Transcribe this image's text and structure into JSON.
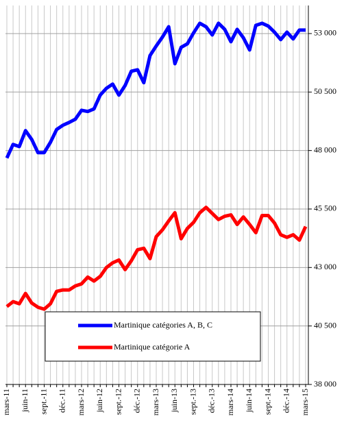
{
  "chart_data": {
    "type": "line",
    "categories": [
      "mars-11",
      null,
      null,
      "juin-11",
      null,
      null,
      "sept.-11",
      null,
      null,
      "déc.-11",
      null,
      null,
      "mars-12",
      null,
      null,
      "juin-12",
      null,
      null,
      "sept.-12",
      null,
      null,
      "déc.-12",
      null,
      null,
      "mars-13",
      null,
      null,
      "juin-13",
      null,
      null,
      "sept.-13",
      null,
      null,
      "déc.-13",
      null,
      null,
      "mars-14",
      null,
      null,
      "juin-14",
      null,
      null,
      "sept.-14",
      null,
      null,
      "déc.-14",
      null,
      null,
      "mars-15"
    ],
    "series": [
      {
        "name": "Martinique catégories A, B, C",
        "color": "#0000ff",
        "values": [
          47680,
          48260,
          48170,
          48850,
          48470,
          47910,
          47910,
          48350,
          48900,
          49080,
          49200,
          49340,
          49720,
          49670,
          49780,
          50370,
          50660,
          50840,
          50370,
          50780,
          51390,
          51450,
          50900,
          52060,
          52470,
          52850,
          53290,
          51710,
          52410,
          52560,
          53030,
          53440,
          53290,
          52940,
          53440,
          53180,
          52650,
          53180,
          52820,
          52300,
          53350,
          53440,
          53320,
          53060,
          52740,
          53060,
          52770,
          53150,
          53150
        ]
      },
      {
        "name": "Martinique catégorie A",
        "color": "#ff0000",
        "values": [
          41330,
          41540,
          41450,
          41890,
          41480,
          41300,
          41220,
          41450,
          41980,
          42040,
          42040,
          42210,
          42300,
          42590,
          42420,
          42620,
          43000,
          43200,
          43320,
          42910,
          43290,
          43760,
          43820,
          43380,
          44320,
          44610,
          44990,
          45340,
          44230,
          44670,
          44930,
          45340,
          45570,
          45310,
          45050,
          45190,
          45250,
          44840,
          45160,
          44840,
          44490,
          45220,
          45220,
          44900,
          44400,
          44290,
          44400,
          44170,
          44750
        ]
      }
    ],
    "ylim": [
      38000,
      54200
    ],
    "yticks": [
      {
        "value": 38000,
        "label": "38 000"
      },
      {
        "value": 40500,
        "label": "40 500"
      },
      {
        "value": 43000,
        "label": "43 000"
      },
      {
        "value": 45500,
        "label": "45 500"
      },
      {
        "value": 48000,
        "label": "48 000"
      },
      {
        "value": 50500,
        "label": "50 500"
      },
      {
        "value": 53000,
        "label": "53 000"
      }
    ],
    "grid": true
  }
}
